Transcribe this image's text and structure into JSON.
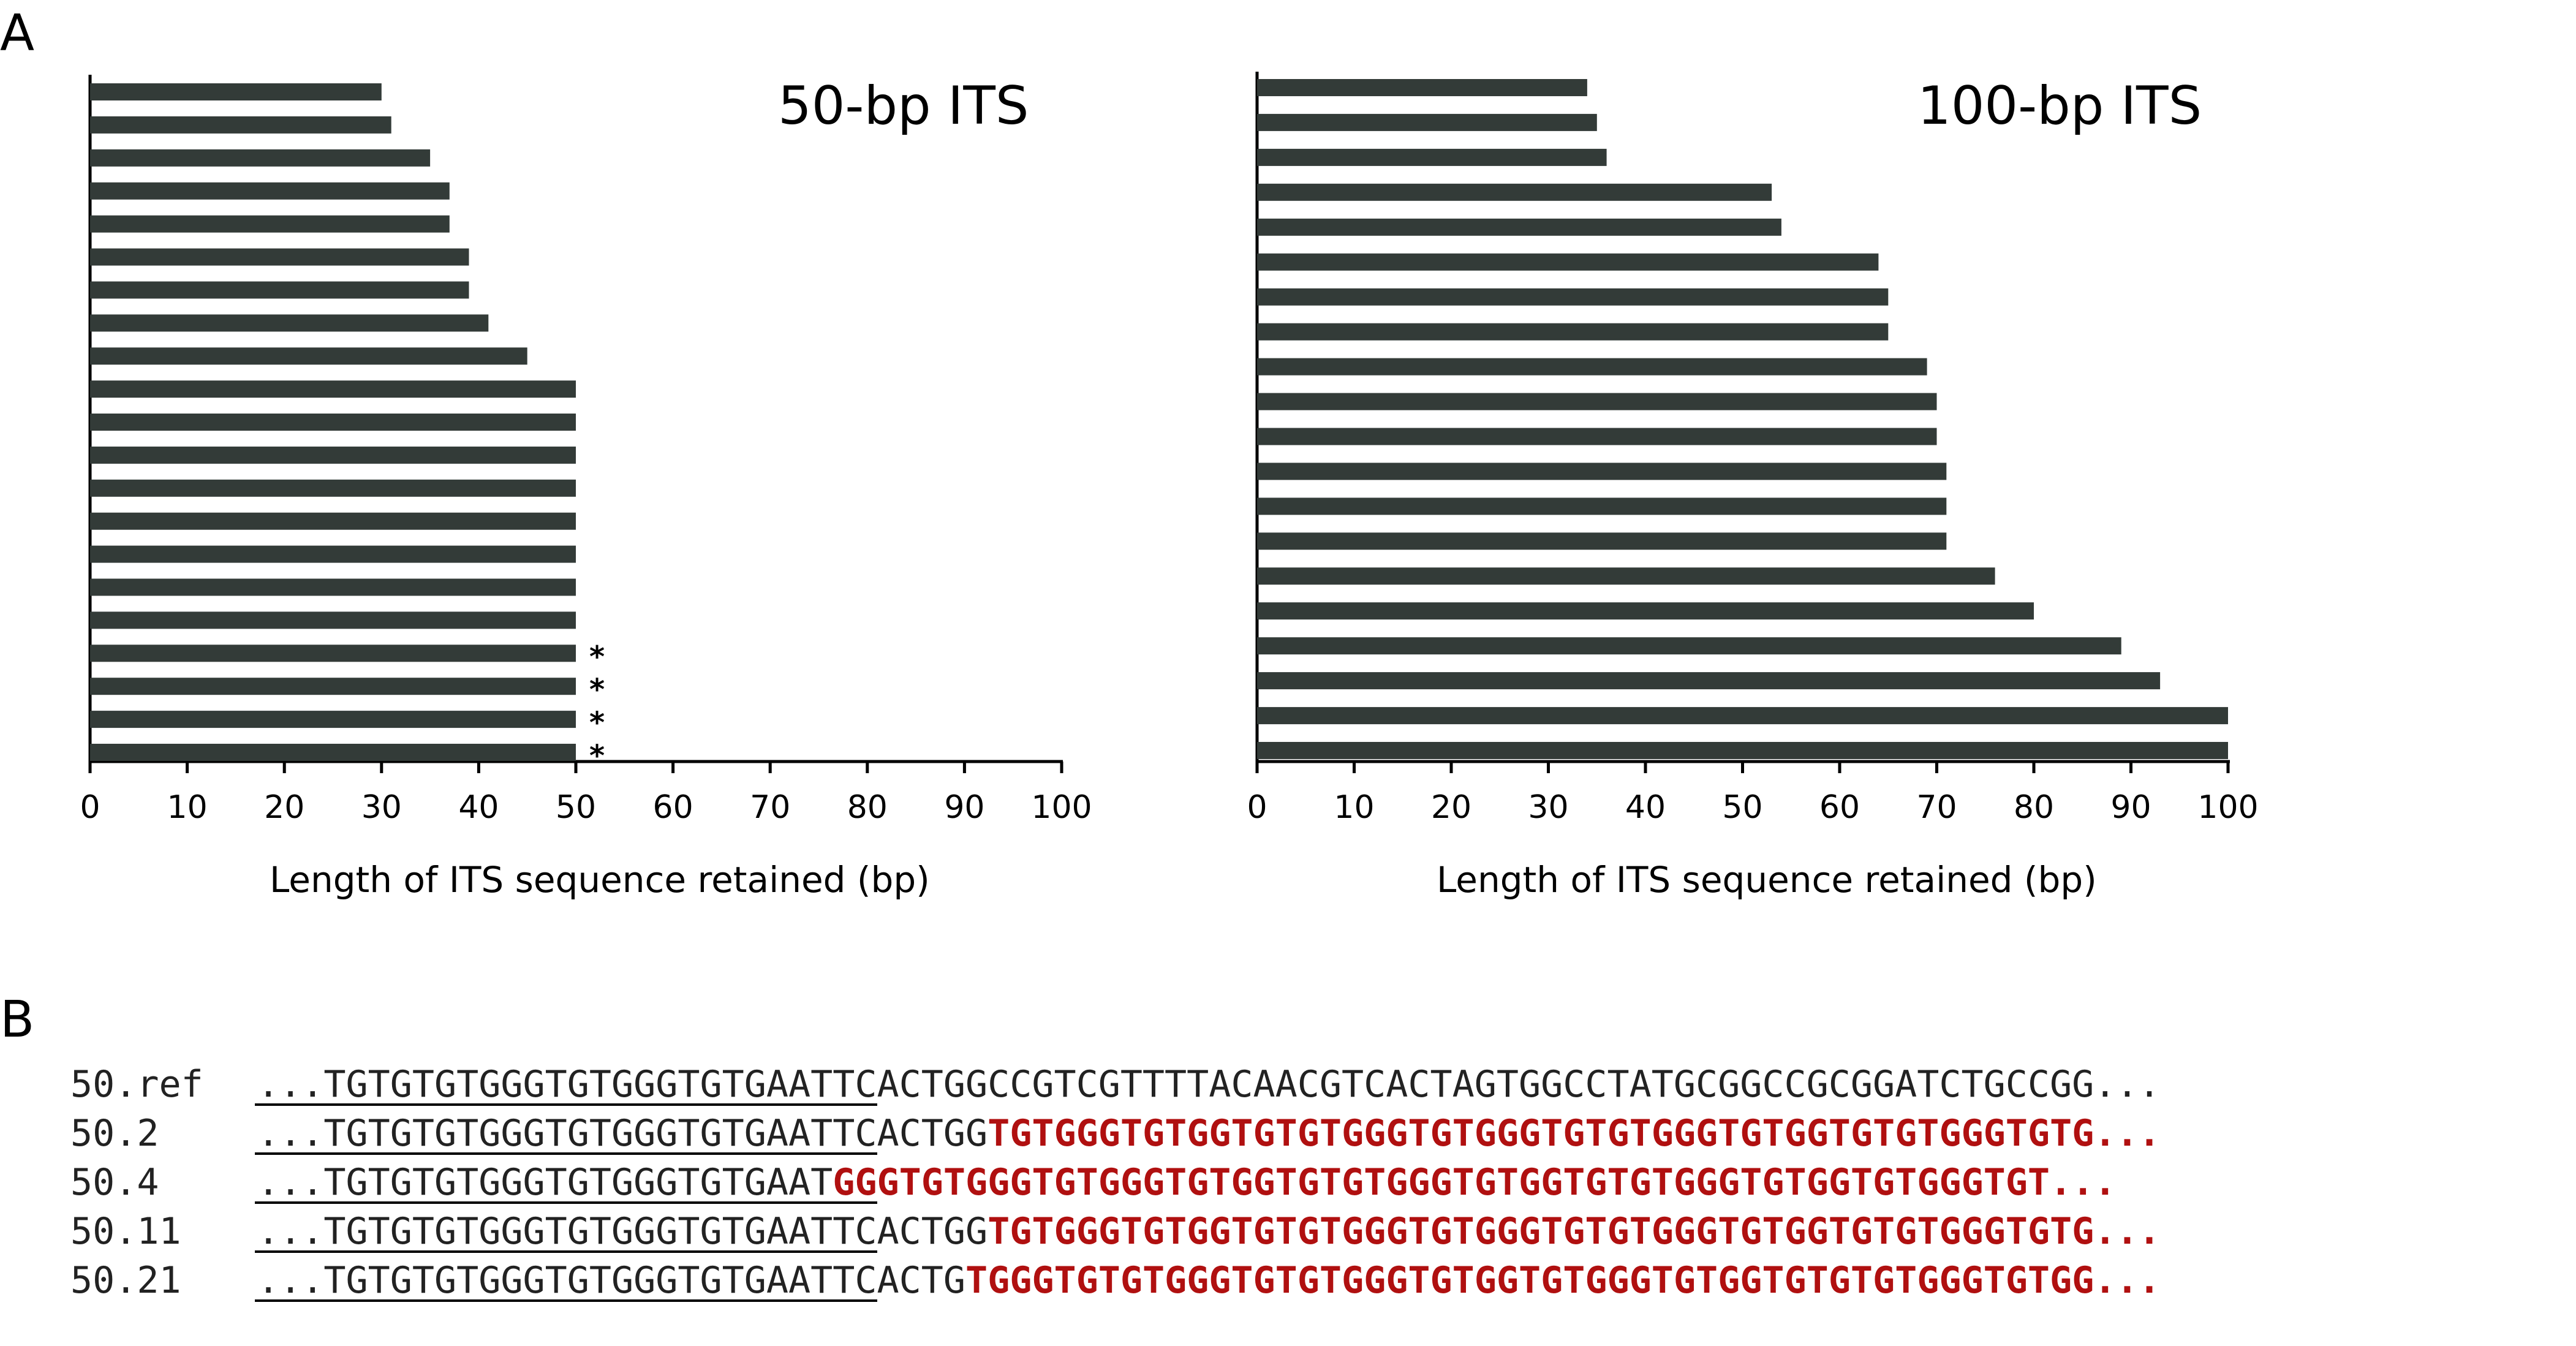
{
  "panel_labels": {
    "a": "A",
    "b": "B"
  },
  "colors": {
    "bar": "#333b38",
    "insert": "#b01010",
    "text": "#222222"
  },
  "chart_data": [
    {
      "type": "bar",
      "orientation": "horizontal",
      "title": "50-bp ITS",
      "xlabel": "Length of ITS sequence retained (bp)",
      "ylabel": "",
      "xlim": [
        0,
        100
      ],
      "xticks": [
        "0",
        "10",
        "20",
        "30",
        "40",
        "50",
        "60",
        "70",
        "80",
        "90",
        "100"
      ],
      "values": [
        30,
        31,
        35,
        37,
        37,
        39,
        39,
        41,
        45,
        50,
        50,
        50,
        50,
        50,
        50,
        50,
        50,
        50,
        50,
        50,
        50
      ],
      "annotations": [
        {
          "bar_index": 17,
          "text": "*"
        },
        {
          "bar_index": 18,
          "text": "*"
        },
        {
          "bar_index": 19,
          "text": "*"
        },
        {
          "bar_index": 20,
          "text": "*"
        }
      ],
      "grid": false
    },
    {
      "type": "bar",
      "orientation": "horizontal",
      "title": "100-bp ITS",
      "xlabel": "Length of ITS sequence retained (bp)",
      "ylabel": "",
      "xlim": [
        0,
        100
      ],
      "xticks": [
        "0",
        "10",
        "20",
        "30",
        "40",
        "50",
        "60",
        "70",
        "80",
        "90",
        "100"
      ],
      "values": [
        34,
        35,
        36,
        53,
        54,
        64,
        65,
        65,
        69,
        70,
        70,
        71,
        71,
        71,
        76,
        80,
        89,
        93,
        100,
        100
      ],
      "annotations": [],
      "grid": false
    }
  ],
  "sequences": {
    "rows": [
      {
        "label": "50.ref",
        "prefix": "...TGTGTGTGGGTGTGGGTGTG",
        "retained": "AATTCACTGGCCGTCGTTTTACAACGTCACTAGTGGCCTATGCGGCCGCGGATCTGCCGG",
        "insert": "",
        "ellipsis": "..."
      },
      {
        "label": "50.2",
        "prefix": "...TGTGTGTGGGTGTGGGTGTG",
        "retained": "AATTCACTGG",
        "insert": "TGTGGGTGTGGTGTGTGGGTGTGGGTGTGTGGGTGTGGTGTGTGGGTGTG",
        "ellipsis": "..."
      },
      {
        "label": "50.4",
        "prefix": "...TGTGTGTGGGTGTGGGTGTG",
        "retained": "AAT",
        "insert": "GGGTGTGGGTGTGGGTGTGGTGTGTGGGTGTGGTGTGTGGGTGTGGTGTGGGTGT",
        "ellipsis": "..."
      },
      {
        "label": "50.11",
        "prefix": "...TGTGTGTGGGTGTGGGTGTG",
        "retained": "AATTCACTGG",
        "insert": "TGTGGGTGTGGTGTGTGGGTGTGGGTGTGTGGGTGTGGTGTGTGGGTGTG",
        "ellipsis": "..."
      },
      {
        "label": "50.21",
        "prefix": "...TGTGTGTGGGTGTGGGTGTG",
        "retained": "AATTCACTG",
        "insert": "TGGGTGTGTGGGTGTGTGGGTGTGGTGTGGGTGTGGTGTGTGTGGGTGTGG",
        "ellipsis": "..."
      }
    ]
  }
}
